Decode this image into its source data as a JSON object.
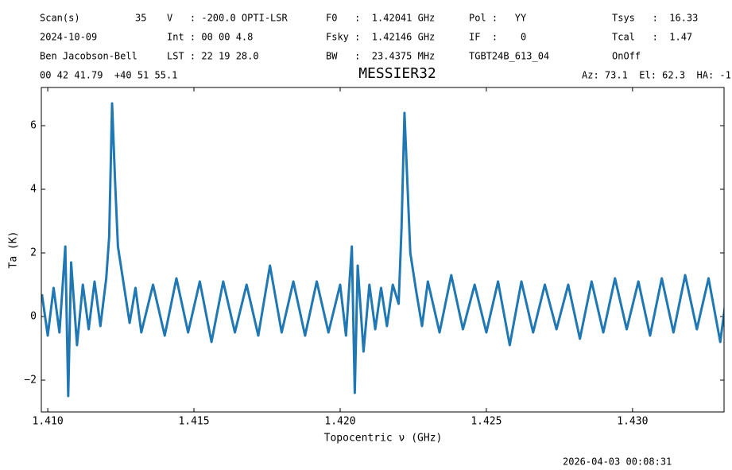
{
  "header": {
    "rows": [
      [
        "Scan(s)",
        "35",
        "V   : -200.0 OPTI-LSR",
        "F0   :  1.42041 GHz",
        "Pol :   YY",
        "Tsys   :  16.33"
      ],
      [
        "2024-10-09",
        "Int : 00 00 4.8",
        "Fsky :  1.42146 GHz",
        "IF  :    0",
        "Tcal   :  1.47"
      ],
      [
        "Ben Jacobson-Bell",
        "LST : 22 19 28.0",
        "BW   :  23.4375 MHz",
        "TGBT24B_613_04",
        "OnOff"
      ],
      [
        "00 42 41.79  +40 51 55.1",
        "Az: 73.1  El: 62.3  HA: -1"
      ]
    ]
  },
  "footer": {
    "timestamp": "2026-04-03 00:08:31"
  },
  "chart_data": {
    "type": "line",
    "title": "MESSIER32",
    "xlabel": "Topocentric ν (GHz)",
    "ylabel": "Ta (K)",
    "x": [
      1.4098,
      1.41,
      1.4102,
      1.4104,
      1.4106,
      1.4107,
      1.4108,
      1.411,
      1.4112,
      1.4114,
      1.4116,
      1.4118,
      1.412,
      1.4121,
      1.4122,
      1.4123,
      1.4124,
      1.4126,
      1.4128,
      1.413,
      1.4132,
      1.4136,
      1.414,
      1.4144,
      1.4148,
      1.4152,
      1.4156,
      1.416,
      1.4164,
      1.4168,
      1.4172,
      1.4176,
      1.418,
      1.4184,
      1.4188,
      1.4192,
      1.4196,
      1.42,
      1.4202,
      1.4204,
      1.4205,
      1.4206,
      1.4208,
      1.421,
      1.4212,
      1.4214,
      1.4216,
      1.4218,
      1.422,
      1.4221,
      1.4222,
      1.4223,
      1.4224,
      1.4226,
      1.4228,
      1.423,
      1.4234,
      1.4238,
      1.4242,
      1.4246,
      1.425,
      1.4254,
      1.4258,
      1.4262,
      1.4266,
      1.427,
      1.4274,
      1.4278,
      1.4282,
      1.4286,
      1.429,
      1.4294,
      1.4298,
      1.4302,
      1.4306,
      1.431,
      1.4314,
      1.4318,
      1.4322,
      1.4326,
      1.433,
      1.4332
    ],
    "series": [
      {
        "name": "Ta",
        "color": "#1f77b4",
        "values": [
          0.7,
          -0.6,
          0.9,
          -0.5,
          2.2,
          -2.5,
          1.7,
          -0.9,
          1.0,
          -0.4,
          1.1,
          -0.3,
          1.2,
          2.5,
          6.7,
          4.3,
          2.2,
          1.0,
          -0.2,
          0.9,
          -0.5,
          1.0,
          -0.6,
          1.2,
          -0.5,
          1.1,
          -0.8,
          1.1,
          -0.5,
          1.0,
          -0.6,
          1.6,
          -0.5,
          1.1,
          -0.6,
          1.1,
          -0.5,
          1.0,
          -0.6,
          2.2,
          -2.4,
          1.6,
          -1.1,
          1.0,
          -0.4,
          0.9,
          -0.3,
          1.0,
          0.4,
          2.8,
          6.4,
          4.2,
          2.0,
          0.8,
          -0.3,
          1.1,
          -0.5,
          1.3,
          -0.4,
          1.0,
          -0.5,
          1.1,
          -0.9,
          1.1,
          -0.5,
          1.0,
          -0.4,
          1.0,
          -0.7,
          1.1,
          -0.5,
          1.2,
          -0.4,
          1.1,
          -0.6,
          1.2,
          -0.5,
          1.3,
          -0.4,
          1.2,
          -0.8,
          0.6
        ]
      }
    ],
    "xlim": [
      1.40978,
      1.43313
    ],
    "ylim": [
      -3.0,
      7.2
    ],
    "xticks": [
      {
        "value": 1.41,
        "label": "1.410"
      },
      {
        "value": 1.415,
        "label": "1.415"
      },
      {
        "value": 1.42,
        "label": "1.420"
      },
      {
        "value": 1.425,
        "label": "1.425"
      },
      {
        "value": 1.43,
        "label": "1.430"
      }
    ],
    "yticks": [
      {
        "value": -2,
        "label": "−2"
      },
      0,
      2,
      4,
      6
    ],
    "grid": false
  }
}
